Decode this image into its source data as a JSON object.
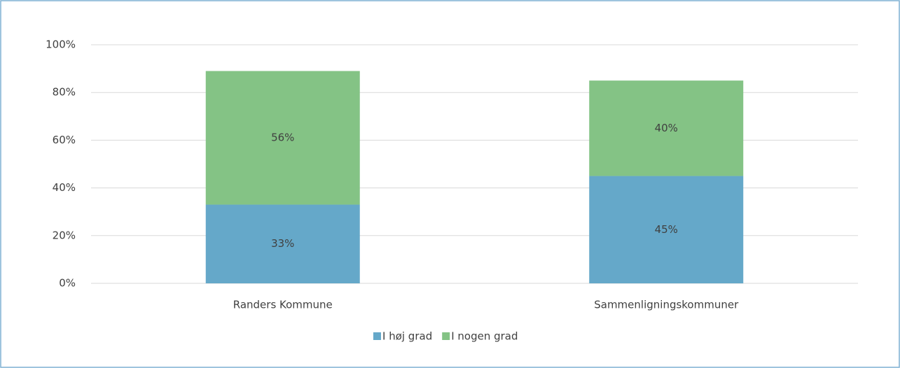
{
  "chart_data": {
    "type": "stacked_bar",
    "categories": [
      "Randers Kommune",
      "Sammenligningskommuner"
    ],
    "series": [
      {
        "name": "I høj grad",
        "color": "#65a8c9",
        "values": [
          33,
          45
        ],
        "value_labels": [
          "33%",
          "45%"
        ]
      },
      {
        "name": "I nogen grad",
        "color": "#84c385",
        "values": [
          56,
          40
        ],
        "value_labels": [
          "56%",
          "40%"
        ]
      }
    ],
    "ylim": [
      0,
      100
    ],
    "yticks": [
      {
        "value": 0,
        "label": "0%"
      },
      {
        "value": 20,
        "label": "20%"
      },
      {
        "value": 40,
        "label": "40%"
      },
      {
        "value": 60,
        "label": "60%"
      },
      {
        "value": 80,
        "label": "80%"
      },
      {
        "value": 100,
        "label": "100%"
      }
    ],
    "grid": true,
    "legend": "bottom"
  }
}
